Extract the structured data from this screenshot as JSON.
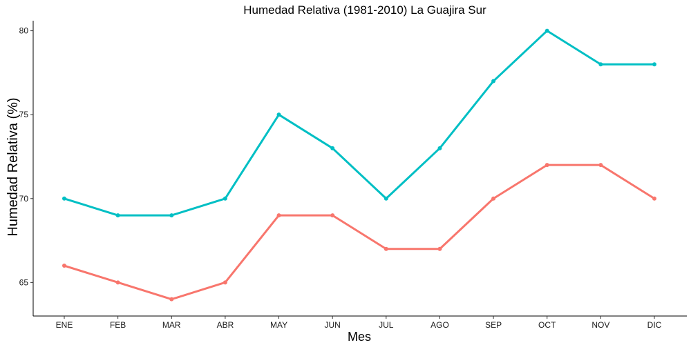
{
  "chart_data": {
    "type": "line",
    "title": "Humedad Relativa (1981-2010)  La Guajira Sur",
    "xlabel": "Mes",
    "ylabel": "Humedad Relativa  (%)",
    "categories": [
      "ENE",
      "FEB",
      "MAR",
      "ABR",
      "MAY",
      "JUN",
      "JUL",
      "AGO",
      "SEP",
      "OCT",
      "NOV",
      "DIC"
    ],
    "ylim": [
      63,
      80.6
    ],
    "yticks": [
      65,
      70,
      75,
      80
    ],
    "grid": false,
    "legend": "none",
    "series": [
      {
        "color": "#00BFC4",
        "values": [
          70,
          69,
          69,
          70,
          75,
          73,
          70,
          73,
          77,
          80,
          78,
          78
        ]
      },
      {
        "color": "#F8766D",
        "values": [
          66,
          65,
          64,
          65,
          69,
          69,
          67,
          67,
          70,
          72,
          72,
          70
        ]
      }
    ]
  }
}
